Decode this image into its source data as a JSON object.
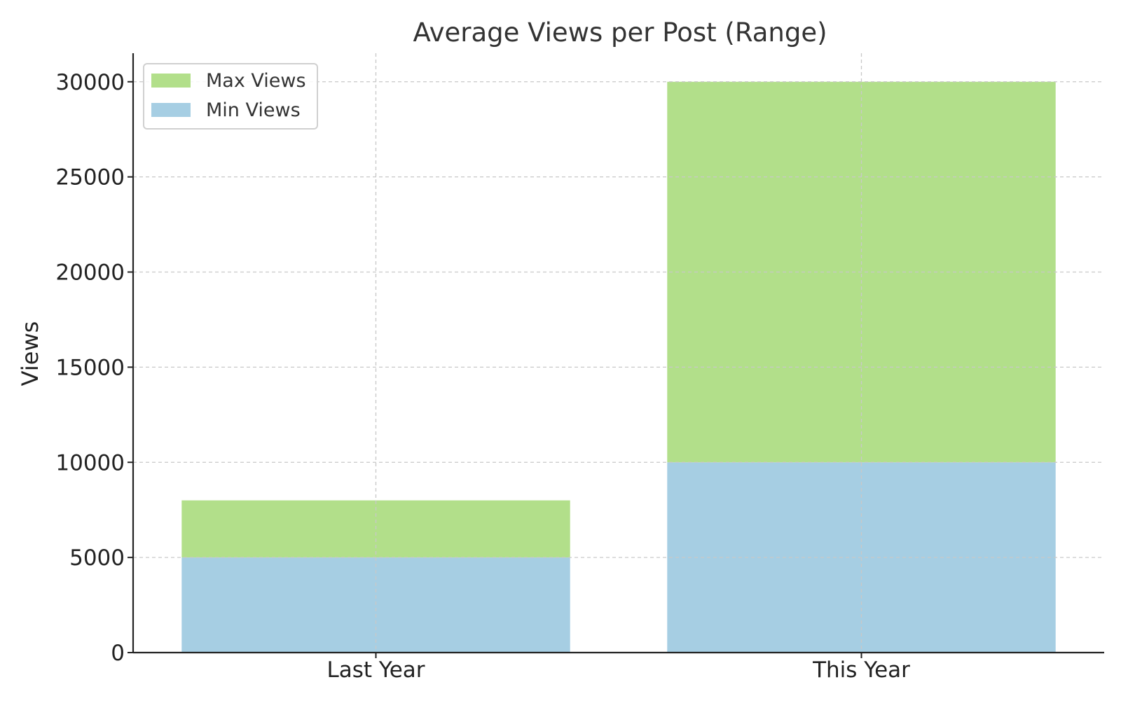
{
  "chart_data": {
    "type": "bar",
    "stacked": true,
    "title": "Average Views per Post (Range)",
    "xlabel": "",
    "ylabel": "Views",
    "categories": [
      "Last Year",
      "This Year"
    ],
    "series": [
      {
        "name": "Min Views",
        "values": [
          5000,
          10000
        ],
        "color": "#a6cee3"
      },
      {
        "name": "Max Views",
        "values": [
          3000,
          20000
        ],
        "color": "#b2df8a"
      }
    ],
    "ylim": [
      0,
      31500
    ],
    "yticks": [
      0,
      5000,
      10000,
      15000,
      20000,
      25000,
      30000
    ],
    "grid": true,
    "legend": {
      "position": "top-left",
      "entries": [
        "Max Views",
        "Min Views"
      ]
    }
  }
}
